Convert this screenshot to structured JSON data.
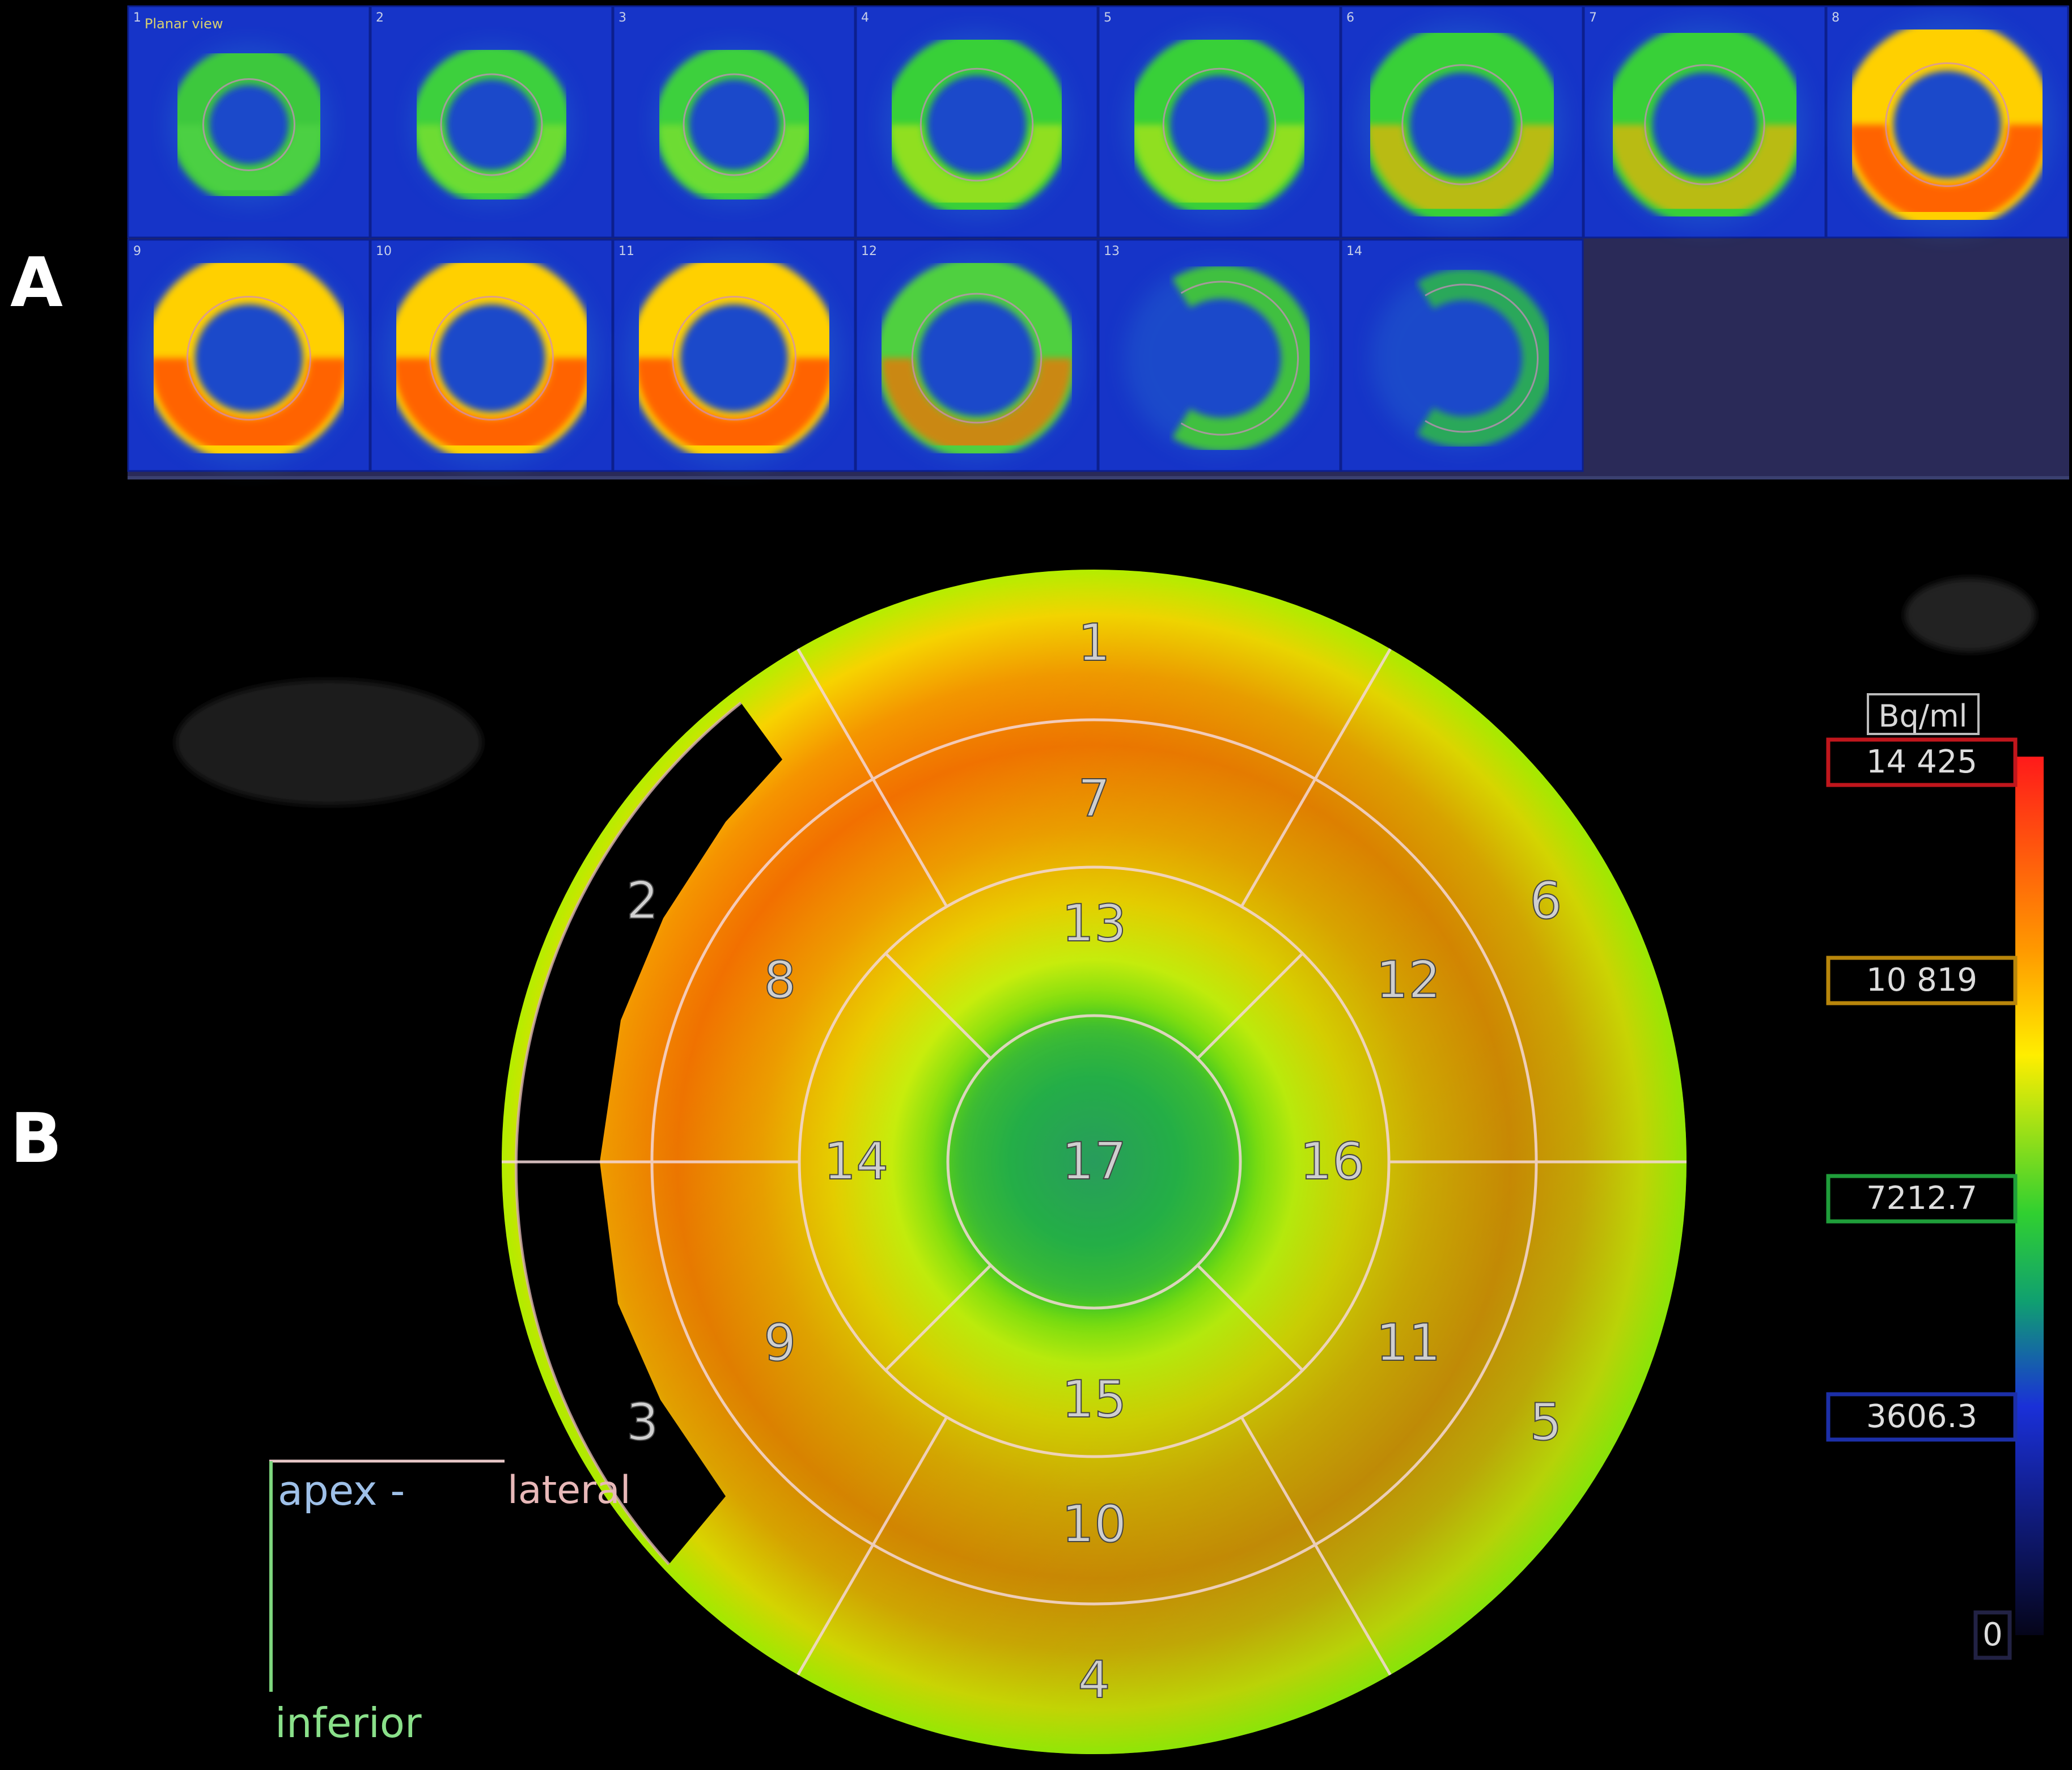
{
  "panels": {
    "a_label": "A",
    "b_label": "B"
  },
  "slices": {
    "view_label": "Planar view",
    "items": [
      {
        "number": "1",
        "ring": "partial"
      },
      {
        "number": "2",
        "ring": "thin"
      },
      {
        "number": "3",
        "ring": "thin"
      },
      {
        "number": "4",
        "ring": "medium"
      },
      {
        "number": "5",
        "ring": "medium"
      },
      {
        "number": "6",
        "ring": "warm"
      },
      {
        "number": "7",
        "ring": "warm"
      },
      {
        "number": "8",
        "ring": "hot"
      },
      {
        "number": "9",
        "ring": "hot"
      },
      {
        "number": "10",
        "ring": "hot"
      },
      {
        "number": "11",
        "ring": "hot"
      },
      {
        "number": "12",
        "ring": "open"
      },
      {
        "number": "13",
        "ring": "arc"
      },
      {
        "number": "14",
        "ring": "arc-faint"
      }
    ]
  },
  "bullseye": {
    "segment_labels": [
      "1",
      "2",
      "3",
      "4",
      "5",
      "6",
      "7",
      "8",
      "9",
      "10",
      "11",
      "12",
      "13",
      "14",
      "15",
      "16",
      "17"
    ],
    "orientation": {
      "apex": "apex -",
      "lateral": "lateral",
      "inferior": "inferior"
    }
  },
  "colorbar": {
    "unit": "Bq/ml",
    "ticks": [
      {
        "label": "14 425",
        "color": "#c0161c"
      },
      {
        "label": "10 819",
        "color": "#b8860b"
      },
      {
        "label": "7212.7",
        "color": "#1f9e3a"
      },
      {
        "label": "3606.3",
        "color": "#1c2fa8"
      },
      {
        "label": "0",
        "color": "#222244"
      }
    ]
  }
}
